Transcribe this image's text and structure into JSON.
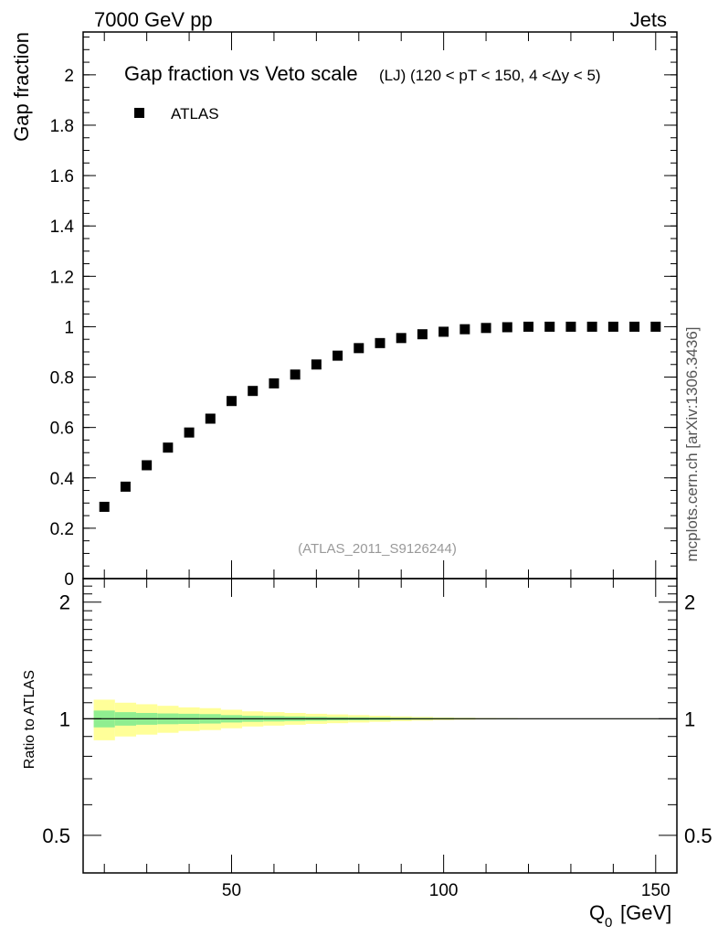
{
  "header": {
    "left": "7000 GeV pp",
    "right": "Jets"
  },
  "side_label": "mcplots.cern.ch [arXiv:1306.3436]",
  "chart_data": [
    {
      "type": "scatter",
      "title": "Gap fraction vs Veto scale",
      "subtitle": "(LJ) (120 < pT < 150, 4 <Δy < 5)",
      "ylabel": "Gap fraction",
      "xlim": [
        15,
        155
      ],
      "ylim": [
        0,
        2.17
      ],
      "yticks": [
        0,
        0.2,
        0.4,
        0.6,
        0.8,
        1,
        1.2,
        1.4,
        1.6,
        1.8,
        2
      ],
      "ytick_labels": [
        "0",
        "0.2",
        "0.4",
        "0.6",
        "0.8",
        "1",
        "1.2",
        "1.4",
        "1.6",
        "1.8",
        "2"
      ],
      "legend": {
        "placement": "top-left",
        "entries": [
          "ATLAS"
        ]
      },
      "watermark": "(ATLAS_2011_S9126244)",
      "series": [
        {
          "name": "ATLAS",
          "x": [
            20,
            25,
            30,
            35,
            40,
            45,
            50,
            55,
            60,
            65,
            70,
            75,
            80,
            85,
            90,
            95,
            100,
            105,
            110,
            115,
            120,
            125,
            130,
            135,
            140,
            145,
            150
          ],
          "y": [
            0.285,
            0.365,
            0.45,
            0.52,
            0.58,
            0.635,
            0.705,
            0.745,
            0.775,
            0.81,
            0.85,
            0.885,
            0.915,
            0.935,
            0.955,
            0.97,
            0.98,
            0.99,
            0.995,
            0.998,
            1.0,
            1.0,
            1.0,
            1.0,
            1.0,
            1.0,
            1.0
          ]
        }
      ]
    },
    {
      "type": "area",
      "ylabel": "Ratio to ATLAS",
      "xlabel": "Q",
      "xlabel_sub": "0",
      "xlabel_unit": "[GeV]",
      "xlim": [
        15,
        155
      ],
      "ylim": [
        0.4,
        2.3
      ],
      "log_y": true,
      "xticks": [
        50,
        100,
        150
      ],
      "xtick_labels": [
        "50",
        "100",
        "150"
      ],
      "yticks": [
        0.5,
        1,
        2
      ],
      "ytick_labels": [
        "0.5",
        "1",
        "2"
      ],
      "reference_line": 1,
      "bands": {
        "x_edges": [
          17.5,
          22.5,
          27.5,
          32.5,
          37.5,
          42.5,
          47.5,
          52.5,
          57.5,
          62.5,
          67.5,
          72.5,
          77.5,
          82.5,
          87.5,
          92.5,
          97.5,
          102.5,
          107.5,
          112.5,
          117.5,
          122.5,
          127.5,
          132.5,
          137.5,
          142.5,
          147.5,
          152.5
        ],
        "inner_halfwidth": [
          0.05,
          0.04,
          0.035,
          0.032,
          0.03,
          0.028,
          0.022,
          0.018,
          0.016,
          0.014,
          0.012,
          0.01,
          0.009,
          0.008,
          0.006,
          0.005,
          0.004,
          0.003,
          0.002,
          0.002,
          0.001,
          0.001,
          0.001,
          0.0008,
          0.0006,
          0.0005,
          0.0005
        ],
        "outer_halfwidth": [
          0.12,
          0.1,
          0.09,
          0.08,
          0.07,
          0.065,
          0.055,
          0.045,
          0.04,
          0.035,
          0.03,
          0.026,
          0.022,
          0.018,
          0.014,
          0.011,
          0.008,
          0.006,
          0.004,
          0.003,
          0.002,
          0.0015,
          0.001,
          0.001,
          0.0008,
          0.0006,
          0.0005
        ],
        "inner_color": "#90ee90",
        "outer_color": "#ffff99"
      }
    }
  ]
}
